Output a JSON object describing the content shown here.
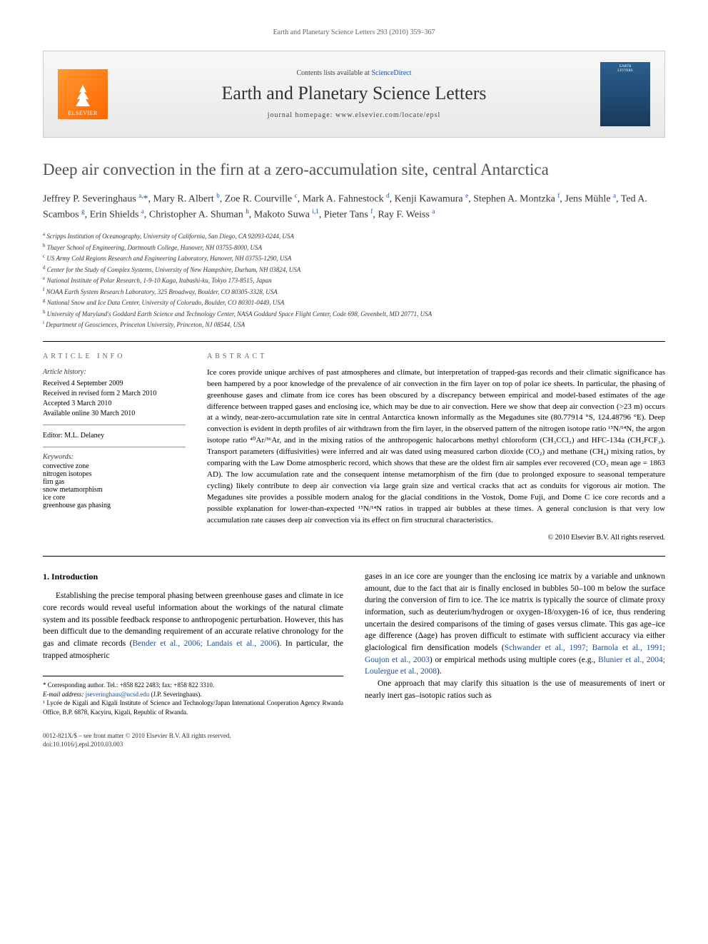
{
  "running_header": "Earth and Planetary Science Letters 293 (2010) 359–367",
  "journal_box": {
    "contents_prefix": "Contents lists available at ",
    "contents_link": "ScienceDirect",
    "journal_name": "Earth and Planetary Science Letters",
    "homepage_prefix": "journal homepage: ",
    "homepage_url": "www.elsevier.com/locate/epsl",
    "publisher_label": "ELSEVIER",
    "cover_title": "EARTH",
    "cover_subtitle": "LETTERS"
  },
  "title": "Deep air convection in the firn at a zero-accumulation site, central Antarctica",
  "authors_html": "Jeffrey P. Severinghaus <span class='sup'>a,</span><span class='corr'>*</span>, Mary R. Albert <span class='sup'>b</span>, Zoe R. Courville <span class='sup'>c</span>, Mark A. Fahnestock <span class='sup'>d</span>, Kenji Kawamura <span class='sup'>e</span>, Stephen A. Montzka <span class='sup'>f</span>, Jens Mühle <span class='sup'>a</span>, Ted A. Scambos <span class='sup'>g</span>, Erin Shields <span class='sup'>a</span>, Christopher A. Shuman <span class='sup'>h</span>, Makoto Suwa <span class='sup'>i,1</span>, Pieter Tans <span class='sup'>f</span>, Ray F. Weiss <span class='sup'>a</span>",
  "affiliations": [
    {
      "sup": "a",
      "text": "Scripps Institution of Oceanography, University of California, San Diego, CA 92093-0244, USA"
    },
    {
      "sup": "b",
      "text": "Thayer School of Engineering, Dartmouth College, Hanover, NH 03755-8000, USA"
    },
    {
      "sup": "c",
      "text": "US Army Cold Regions Research and Engineering Laboratory, Hanover, NH 03755-1290, USA"
    },
    {
      "sup": "d",
      "text": "Center for the Study of Complex Systems, University of New Hampshire, Durham, NH 03824, USA"
    },
    {
      "sup": "e",
      "text": "National Institute of Polar Research, 1-9-10 Kaga, Itabashi-ku, Tokyo 173-8515, Japan"
    },
    {
      "sup": "f",
      "text": "NOAA Earth System Research Laboratory, 325 Broadway, Boulder, CO 80305-3328, USA"
    },
    {
      "sup": "g",
      "text": "National Snow and Ice Data Center, University of Colorado, Boulder, CO 80301-0449, USA"
    },
    {
      "sup": "h",
      "text": "University of Maryland's Goddard Earth Science and Technology Center, NASA Goddard Space Flight Center, Code 698, Greenbelt, MD 20771, USA"
    },
    {
      "sup": "i",
      "text": "Department of Geosciences, Princeton University, Princeton, NJ 08544, USA"
    }
  ],
  "article_info": {
    "heading": "ARTICLE INFO",
    "history_label": "Article history:",
    "history": [
      "Received 4 September 2009",
      "Received in revised form 2 March 2010",
      "Accepted 3 March 2010",
      "Available online 30 March 2010"
    ],
    "editor_label": "Editor: M.L. Delaney",
    "keywords_label": "Keywords:",
    "keywords": [
      "convective zone",
      "nitrogen isotopes",
      "firn gas",
      "snow metamorphism",
      "ice core",
      "greenhouse gas phasing"
    ]
  },
  "abstract": {
    "heading": "ABSTRACT",
    "text": "Ice cores provide unique archives of past atmospheres and climate, but interpretation of trapped-gas records and their climatic significance has been hampered by a poor knowledge of the prevalence of air convection in the firn layer on top of polar ice sheets. In particular, the phasing of greenhouse gases and climate from ice cores has been obscured by a discrepancy between empirical and model-based estimates of the age difference between trapped gases and enclosing ice, which may be due to air convection. Here we show that deep air convection (>23 m) occurs at a windy, near-zero-accumulation rate site in central Antarctica known informally as the Megadunes site (80.77914 °S, 124.48796 °E). Deep convection is evident in depth profiles of air withdrawn from the firn layer, in the observed pattern of the nitrogen isotope ratio ¹⁵N/¹⁴N, the argon isotope ratio ⁴⁰Ar/³⁶Ar, and in the mixing ratios of the anthropogenic halocarbons methyl chloroform (CH₃CCl₃) and HFC-134a (CH₂FCF₃). Transport parameters (diffusivities) were inferred and air was dated using measured carbon dioxide (CO₂) and methane (CH₄) mixing ratios, by comparing with the Law Dome atmospheric record, which shows that these are the oldest firn air samples ever recovered (CO₂ mean age = 1863 AD). The low accumulation rate and the consequent intense metamorphism of the firn (due to prolonged exposure to seasonal temperature cycling) likely contribute to deep air convection via large grain size and vertical cracks that act as conduits for vigorous air motion. The Megadunes site provides a possible modern analog for the glacial conditions in the Vostok, Dome Fuji, and Dome C ice core records and a possible explanation for lower-than-expected ¹⁵N/¹⁴N ratios in trapped air bubbles at these times. A general conclusion is that very low accumulation rate causes deep air convection via its effect on firn structural characteristics.",
    "copyright": "© 2010 Elsevier B.V. All rights reserved."
  },
  "section1": {
    "heading": "1. Introduction",
    "left_para": "Establishing the precise temporal phasing between greenhouse gases and climate in ice core records would reveal useful information about the workings of the natural climate system and its possible feedback response to anthropogenic perturbation. However, this has been difficult due to the demanding requirement of an accurate relative chronology for the gas and climate records (Bender et al., 2006; Landais et al., 2006). In particular, the trapped atmospheric",
    "right_para1": "gases in an ice core are younger than the enclosing ice matrix by a variable and unknown amount, due to the fact that air is finally enclosed in bubbles 50–100 m below the surface during the conversion of firn to ice. The ice matrix is typically the source of climate proxy information, such as deuterium/hydrogen or oxygen-18/oxygen-16 of ice, thus rendering uncertain the desired comparisons of the timing of gases versus climate. This gas age–ice age difference (Δage) has proven difficult to estimate with sufficient accuracy via either glaciological firn densification models (Schwander et al., 1997; Barnola et al., 1991; Goujon et al., 2003) or empirical methods using multiple cores (e.g., Blunier et al., 2004; Loulergue et al., 2008).",
    "right_para2": "One approach that may clarify this situation is the use of measurements of inert or nearly inert gas–isotopic ratios such as"
  },
  "footnotes": {
    "corr_label": "* Corresponding author. Tel.: +858 822 2483; fax: +858 822 3310.",
    "email_label": "E-mail address:",
    "email": "jseveringhaus@ucsd.edu",
    "email_suffix": "(J.P. Severinghaus).",
    "note1": "¹ Lycée de Kigali and Kigali Institute of Science and Technology/Japan International Cooperation Agency Rwanda Office, B.P. 6878, Kacyiru, Kigali, Republic of Rwanda."
  },
  "page_footer": {
    "line1": "0012-821X/$ – see front matter © 2010 Elsevier B.V. All rights reserved.",
    "line2": "doi:10.1016/j.epsl.2010.03.003"
  },
  "refs": {
    "bender": "Bender et al., 2006; Landais et al., 2006",
    "schwander": "Schwander et al., 1997; Barnola et al., 1991; Goujon et al., 2003",
    "blunier": "Blunier et al., 2004; Loulergue et al., 2008"
  },
  "colors": {
    "link": "#1a4fa0",
    "title_gray": "#515151",
    "elsevier_orange": "#ff8417"
  }
}
